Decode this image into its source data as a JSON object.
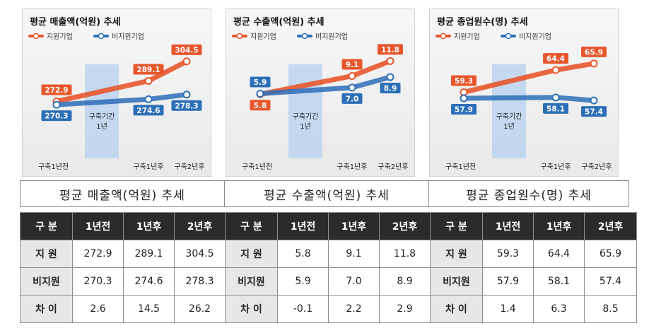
{
  "chart_data": [
    {
      "type": "line",
      "title": "평균 매출액(억원) 추세",
      "caption": "평균 매출액(억원) 추세",
      "categories": [
        "구축1년전",
        "구축1년후",
        "구축2년후"
      ],
      "period_label": [
        "구축기간",
        "1년"
      ],
      "ylim": [
        262,
        310
      ],
      "series": [
        {
          "name": "지원기업",
          "values": [
            272.9,
            289.1,
            304.5
          ],
          "labels": [
            "272.9",
            "289.1",
            "304.5"
          ],
          "color": "#e8562c"
        },
        {
          "name": "비지원기업",
          "values": [
            270.3,
            274.6,
            278.3
          ],
          "labels": [
            "270.3",
            "274.6",
            "278.3"
          ],
          "color": "#2d6fb8"
        }
      ]
    },
    {
      "type": "line",
      "title": "평균 수출액(억원) 추세",
      "caption": "평균 수출액(억원) 추세",
      "categories": [
        "구축1년전",
        "구축1년후",
        "구축2년후"
      ],
      "period_label": [
        "구축기간",
        "1년"
      ],
      "ylim": [
        2,
        13
      ],
      "series": [
        {
          "name": "지원기업",
          "values": [
            5.8,
            9.1,
            11.8
          ],
          "labels": [
            "5.8",
            "9.1",
            "11.8"
          ],
          "color": "#e8562c"
        },
        {
          "name": "비지원기업",
          "values": [
            5.9,
            7.0,
            8.9
          ],
          "labels": [
            "5.9",
            "7.0",
            "8.9"
          ],
          "color": "#2d6fb8"
        }
      ]
    },
    {
      "type": "line",
      "title": "평균 종업원수(명) 추세",
      "caption": "평균 종업원수(명) 추세",
      "categories": [
        "구축1년전",
        "구축1년후",
        "구축2년후"
      ],
      "period_label": [
        "구축기간",
        "1년"
      ],
      "ylim": [
        54,
        68
      ],
      "series": [
        {
          "name": "지원기업",
          "values": [
            59.3,
            64.4,
            65.9
          ],
          "labels": [
            "59.3",
            "64.4",
            "65.9"
          ],
          "color": "#e8562c"
        },
        {
          "name": "비지원기업",
          "values": [
            57.9,
            58.1,
            57.4
          ],
          "labels": [
            "57.9",
            "58.1",
            "57.4"
          ],
          "color": "#2d6fb8"
        }
      ]
    }
  ],
  "table": {
    "header": [
      "구 분",
      "1년전",
      "1년후",
      "2년후",
      "구 분",
      "1년전",
      "1년후",
      "2년후",
      "구 분",
      "1년전",
      "1년후",
      "2년후"
    ],
    "rows": [
      [
        "지 원",
        "272.9",
        "289.1",
        "304.5",
        "지 원",
        "5.8",
        "9.1",
        "11.8",
        "지 원",
        "59.3",
        "64.4",
        "65.9"
      ],
      [
        "비지원",
        "270.3",
        "274.6",
        "278.3",
        "비지원",
        "5.9",
        "7.0",
        "8.9",
        "비지원",
        "57.9",
        "58.1",
        "57.4"
      ],
      [
        "차 이",
        "2.6",
        "14.5",
        "26.2",
        "차 이",
        "-0.1",
        "2.2",
        "2.9",
        "차 이",
        "1.4",
        "6.3",
        "8.5"
      ]
    ]
  },
  "colors": {
    "support": "#e8562c",
    "nonsupport": "#2d6fb8",
    "period_band": "#bcd3ee"
  }
}
